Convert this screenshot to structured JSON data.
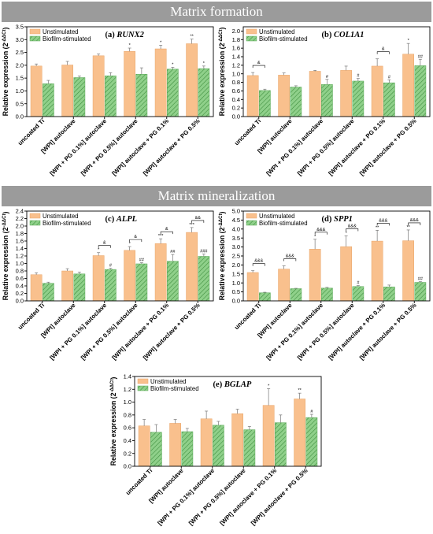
{
  "banners": {
    "top": "Matrix formation",
    "middle": "Matrix mineralization"
  },
  "colors": {
    "unstimulated": "#f9c08d",
    "biofilm": "#8fd08a",
    "biofilm_hatch": "#3a8a3a",
    "banner": "#9b9b9b"
  },
  "legend": {
    "unstimulated": "Unstimulated",
    "biofilm": "Biofilm-stimulated"
  },
  "chart_data": [
    {
      "type": "bar",
      "title": "(a) RUNX2",
      "gene": "RUNX2",
      "ylabel": "Relative expression (2^-ΔΔCt)",
      "ylim": [
        0,
        3.5
      ],
      "yticks": [
        "0.0",
        "0.5",
        "1.0",
        "1.5",
        "2.0",
        "2.5",
        "3.0",
        "3.5"
      ],
      "categories": [
        "uncoated Ti",
        "[WPI] autoclave",
        "[WPI + PG 0.1%] autoclave",
        "[WPI + PG 0.5%] autoclave",
        "[WPI] autoclave + PG 0.1%",
        "[WPI] autoclave + PG 0.5%"
      ],
      "series": [
        {
          "name": "Unstimulated",
          "values": [
            1.97,
            2.01,
            2.37,
            2.54,
            2.64,
            2.84
          ],
          "errors": [
            0.08,
            0.14,
            0.07,
            0.13,
            0.14,
            0.18
          ],
          "annotations": [
            "",
            "",
            "",
            "*",
            "*",
            "**"
          ]
        },
        {
          "name": "Biofilm-stimulated",
          "values": [
            1.28,
            1.52,
            1.59,
            1.65,
            1.85,
            1.87
          ],
          "errors": [
            0.13,
            0.06,
            0.12,
            0.25,
            0.07,
            0.1
          ],
          "annotations": [
            "",
            "",
            "",
            "",
            "*",
            "*"
          ]
        }
      ],
      "brackets": []
    },
    {
      "type": "bar",
      "title": "(b) COL1A1",
      "gene": "COL1A1",
      "ylabel": "Relative expression (2^-ΔΔCt)",
      "ylim": [
        0,
        2.1
      ],
      "yticks": [
        "0.0",
        "0.2",
        "0.4",
        "0.6",
        "0.8",
        "1.0",
        "1.2",
        "1.4",
        "1.6",
        "1.8",
        "2.0"
      ],
      "categories": [
        "uncoated Ti",
        "[WPI] autoclave",
        "[WPI + PG 0.1%] autoclave",
        "[WPI + PG 0.5%] autoclave",
        "[WPI] autoclave + PG 0.1%",
        "[WPI] autoclave + PG 0.5%"
      ],
      "series": [
        {
          "name": "Unstimulated",
          "values": [
            0.96,
            0.97,
            1.06,
            1.08,
            1.18,
            1.46
          ],
          "errors": [
            0.07,
            0.05,
            0.02,
            0.1,
            0.17,
            0.25
          ],
          "annotations": [
            "",
            "",
            "",
            "",
            "",
            "*"
          ]
        },
        {
          "name": "Biofilm-stimulated",
          "values": [
            0.61,
            0.69,
            0.75,
            0.83,
            0.79,
            1.19
          ],
          "errors": [
            0.03,
            0.03,
            0.12,
            0.06,
            0.07,
            0.15
          ],
          "annotations": [
            "",
            "",
            "#",
            "#",
            "#",
            "##"
          ]
        }
      ],
      "brackets": [
        {
          "index": 0,
          "label": "&"
        },
        {
          "index": 4,
          "label": "&"
        }
      ]
    },
    {
      "type": "bar",
      "title": "(c) ALPL",
      "gene": "ALPL",
      "ylabel": "Relative expression (2^-ΔΔCt)",
      "ylim": [
        0,
        2.4
      ],
      "yticks": [
        "0.0",
        "0.2",
        "0.4",
        "0.6",
        "0.8",
        "1.0",
        "1.2",
        "1.4",
        "1.6",
        "1.8",
        "2.0",
        "2.2",
        "2.4"
      ],
      "categories": [
        "uncoated Ti",
        "[WPI] autoclave",
        "[WPI + PG 0.1%] autoclave",
        "[WPI + PG 0.5%] autoclave",
        "[WPI] autoclave + PG 0.1%",
        "[WPI] autoclave + PG 0.5%"
      ],
      "series": [
        {
          "name": "Unstimulated",
          "values": [
            0.7,
            0.8,
            1.21,
            1.35,
            1.53,
            1.83
          ],
          "errors": [
            0.05,
            0.06,
            0.08,
            0.1,
            0.13,
            0.13
          ],
          "annotations": [
            "",
            "",
            "*",
            "*",
            "***",
            "***"
          ]
        },
        {
          "name": "Biofilm-stimulated",
          "values": [
            0.47,
            0.72,
            0.84,
            0.99,
            1.06,
            1.19
          ],
          "errors": [
            0.03,
            0.05,
            0.03,
            0.03,
            0.18,
            0.06
          ],
          "annotations": [
            "",
            "",
            "#",
            "##",
            "##",
            "###"
          ]
        }
      ],
      "brackets": [
        {
          "index": 2,
          "label": "&"
        },
        {
          "index": 3,
          "label": "&"
        },
        {
          "index": 4,
          "label": "&"
        },
        {
          "index": 5,
          "label": "&&"
        }
      ]
    },
    {
      "type": "bar",
      "title": "(d) SPP1",
      "gene": "SPP1",
      "ylabel": "Relative expression (2^-ΔΔCt)",
      "ylim": [
        0,
        5.0
      ],
      "yticks": [
        "0.0",
        "0.5",
        "1.0",
        "1.5",
        "2.0",
        "2.5",
        "3.0",
        "3.5",
        "4.0",
        "4.5",
        "5.0"
      ],
      "categories": [
        "uncoated Ti",
        "[WPI] autoclave",
        "[WPI + PG 0.1%] autoclave",
        "[WPI + PG 0.5%] autoclave",
        "[WPI] autoclave + PG 0.1%",
        "[WPI] autoclave + PG 0.5%"
      ],
      "series": [
        {
          "name": "Unstimulated",
          "values": [
            1.58,
            1.77,
            2.88,
            3.02,
            3.33,
            3.35
          ],
          "errors": [
            0.1,
            0.18,
            0.55,
            0.6,
            0.6,
            0.6
          ],
          "annotations": [
            "",
            "",
            "*",
            "*",
            "**",
            "**"
          ]
        },
        {
          "name": "Biofilm-stimulated",
          "values": [
            0.45,
            0.68,
            0.71,
            0.8,
            0.78,
            1.03
          ],
          "errors": [
            0.03,
            0.02,
            0.04,
            0.05,
            0.1,
            0.04
          ],
          "annotations": [
            "",
            "",
            "",
            "#",
            "",
            "##"
          ]
        }
      ],
      "brackets": [
        {
          "index": 0,
          "label": "&&&"
        },
        {
          "index": 1,
          "label": "&&&"
        },
        {
          "index": 2,
          "label": "&&&"
        },
        {
          "index": 3,
          "label": "&&&"
        },
        {
          "index": 4,
          "label": "&&&"
        },
        {
          "index": 5,
          "label": "&&&"
        }
      ]
    },
    {
      "type": "bar",
      "title": "(e) BGLAP",
      "gene": "BGLAP",
      "ylabel": "Relative expression (2^-ΔΔCt)",
      "ylim": [
        0,
        1.4
      ],
      "yticks": [
        "0.0",
        "0.2",
        "0.4",
        "0.6",
        "0.8",
        "1.0",
        "1.2",
        "1.4"
      ],
      "categories": [
        "uncoated Ti",
        "[WPI] autoclave",
        "[WPI + PG 0.1%] autoclave",
        "[WPI + PG 0.5%] autoclave",
        "[WPI] autoclave + PG 0.1%",
        "[WPI] autoclave + PG 0.5%"
      ],
      "series": [
        {
          "name": "Unstimulated",
          "values": [
            0.63,
            0.67,
            0.74,
            0.82,
            0.95,
            1.05
          ],
          "errors": [
            0.1,
            0.06,
            0.12,
            0.07,
            0.26,
            0.09
          ],
          "annotations": [
            "",
            "",
            "",
            "",
            "*",
            "**"
          ]
        },
        {
          "name": "Biofilm-stimulated",
          "values": [
            0.53,
            0.54,
            0.64,
            0.57,
            0.68,
            0.76
          ],
          "errors": [
            0.12,
            0.05,
            0.06,
            0.05,
            0.12,
            0.05
          ],
          "annotations": [
            "",
            "",
            "",
            "",
            "",
            "#"
          ]
        }
      ],
      "brackets": []
    }
  ]
}
